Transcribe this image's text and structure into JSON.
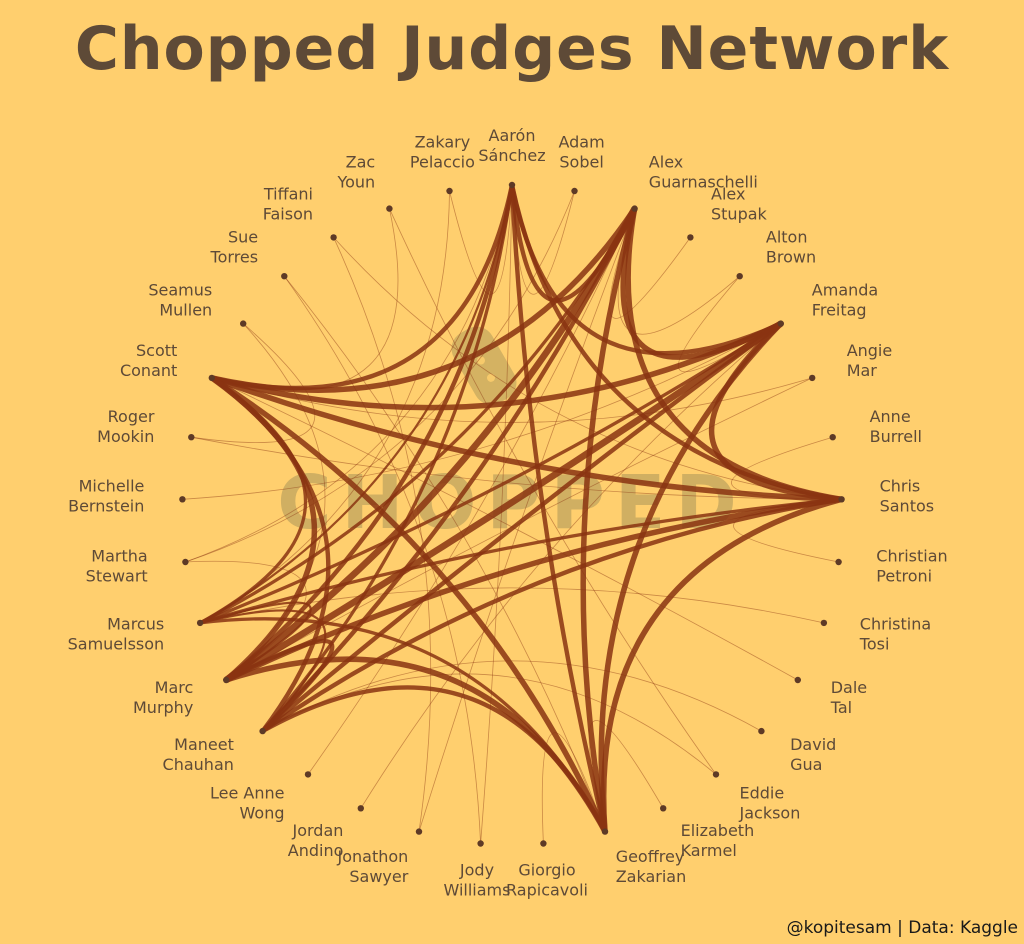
{
  "title": "Chopped Judges Network",
  "credit": "@kopitesam | Data: Kaggle",
  "watermark": "CHOPPED",
  "colors": {
    "background": "#ffcf6e",
    "edge": "#8a3412",
    "text": "#5e4a37",
    "watermark": "#b09a5a"
  },
  "nodes": [
    {
      "id": "aaron",
      "label": [
        "Aarón",
        "Sánchez"
      ]
    },
    {
      "id": "adam",
      "label": [
        "Adam",
        "Sobel"
      ]
    },
    {
      "id": "alexg",
      "label": [
        "Alex",
        "Guarnaschelli"
      ]
    },
    {
      "id": "alexs",
      "label": [
        "Alex",
        "Stupak"
      ]
    },
    {
      "id": "alton",
      "label": [
        "Alton",
        "Brown"
      ]
    },
    {
      "id": "amanda",
      "label": [
        "Amanda",
        "Freitag"
      ]
    },
    {
      "id": "angie",
      "label": [
        "Angie",
        "Mar"
      ]
    },
    {
      "id": "anne",
      "label": [
        "Anne",
        "Burrell"
      ]
    },
    {
      "id": "chris",
      "label": [
        "Chris",
        "Santos"
      ]
    },
    {
      "id": "christian",
      "label": [
        "Christian",
        "Petroni"
      ]
    },
    {
      "id": "christina",
      "label": [
        "Christina",
        "Tosi"
      ]
    },
    {
      "id": "dale",
      "label": [
        "Dale",
        "Tal"
      ]
    },
    {
      "id": "david",
      "label": [
        "David",
        "Gua"
      ]
    },
    {
      "id": "eddie",
      "label": [
        "Eddie",
        "Jackson"
      ]
    },
    {
      "id": "elizabeth",
      "label": [
        "Elizabeth",
        "Karmel"
      ]
    },
    {
      "id": "geoffrey",
      "label": [
        "Geoffrey",
        "Zakarian"
      ]
    },
    {
      "id": "giorgio",
      "label": [
        "Giorgio",
        "Rapicavoli"
      ]
    },
    {
      "id": "jody",
      "label": [
        "Jody",
        "Williams"
      ]
    },
    {
      "id": "jonathon",
      "label": [
        "Jonathon",
        "Sawyer"
      ]
    },
    {
      "id": "jordan",
      "label": [
        "Jordan",
        "Andino"
      ]
    },
    {
      "id": "leeanne",
      "label": [
        "Lee Anne",
        "Wong"
      ]
    },
    {
      "id": "maneet",
      "label": [
        "Maneet",
        "Chauhan"
      ]
    },
    {
      "id": "marc",
      "label": [
        "Marc",
        "Murphy"
      ]
    },
    {
      "id": "marcus",
      "label": [
        "Marcus",
        "Samuelsson"
      ]
    },
    {
      "id": "martha",
      "label": [
        "Martha",
        "Stewart"
      ]
    },
    {
      "id": "michelle",
      "label": [
        "Michelle",
        "Bernstein"
      ]
    },
    {
      "id": "roger",
      "label": [
        "Roger",
        "Mookin"
      ]
    },
    {
      "id": "scott",
      "label": [
        "Scott",
        "Conant"
      ]
    },
    {
      "id": "seamus",
      "label": [
        "Seamus",
        "Mullen"
      ]
    },
    {
      "id": "sue",
      "label": [
        "Sue",
        "Torres"
      ]
    },
    {
      "id": "tiffani",
      "label": [
        "Tiffani",
        "Faison"
      ]
    },
    {
      "id": "zac",
      "label": [
        "Zac",
        "Youn"
      ]
    },
    {
      "id": "zakary",
      "label": [
        "Zakary",
        "Pelaccio"
      ]
    }
  ],
  "edges": [
    [
      "aaron",
      "alexg",
      4
    ],
    [
      "aaron",
      "amanda",
      4
    ],
    [
      "aaron",
      "chris",
      4
    ],
    [
      "aaron",
      "geoffrey",
      4
    ],
    [
      "aaron",
      "marc",
      4
    ],
    [
      "aaron",
      "scott",
      4
    ],
    [
      "aaron",
      "maneet",
      3
    ],
    [
      "aaron",
      "marcus",
      2
    ],
    [
      "aaron",
      "adam",
      1
    ],
    [
      "aaron",
      "zakary",
      1
    ],
    [
      "aaron",
      "jody",
      1
    ],
    [
      "aaron",
      "martha",
      1
    ],
    [
      "alexg",
      "amanda",
      5
    ],
    [
      "alexg",
      "chris",
      5
    ],
    [
      "alexg",
      "geoffrey",
      5
    ],
    [
      "alexg",
      "marc",
      6
    ],
    [
      "alexg",
      "scott",
      5
    ],
    [
      "alexg",
      "maneet",
      4
    ],
    [
      "alexg",
      "marcus",
      3
    ],
    [
      "alexg",
      "alexs",
      1
    ],
    [
      "alexg",
      "alton",
      1
    ],
    [
      "alexg",
      "jonathon",
      1
    ],
    [
      "alexg",
      "leeanne",
      1
    ],
    [
      "amanda",
      "chris",
      5
    ],
    [
      "amanda",
      "geoffrey",
      5
    ],
    [
      "amanda",
      "marc",
      6
    ],
    [
      "amanda",
      "scott",
      5
    ],
    [
      "amanda",
      "maneet",
      4
    ],
    [
      "amanda",
      "marcus",
      3
    ],
    [
      "amanda",
      "alton",
      1
    ],
    [
      "amanda",
      "jordan",
      1
    ],
    [
      "amanda",
      "michelle",
      1
    ],
    [
      "chris",
      "geoffrey",
      5
    ],
    [
      "chris",
      "marc",
      5
    ],
    [
      "chris",
      "scott",
      5
    ],
    [
      "chris",
      "maneet",
      4
    ],
    [
      "chris",
      "marcus",
      3
    ],
    [
      "chris",
      "anne",
      1
    ],
    [
      "chris",
      "christian",
      1
    ],
    [
      "chris",
      "tiffani",
      1
    ],
    [
      "chris",
      "roger",
      1
    ],
    [
      "geoffrey",
      "marc",
      5
    ],
    [
      "geoffrey",
      "scott",
      5
    ],
    [
      "geoffrey",
      "maneet",
      4
    ],
    [
      "geoffrey",
      "marcus",
      3
    ],
    [
      "geoffrey",
      "elizabeth",
      1
    ],
    [
      "geoffrey",
      "giorgio",
      1
    ],
    [
      "geoffrey",
      "sue",
      1
    ],
    [
      "marc",
      "scott",
      5
    ],
    [
      "marc",
      "maneet",
      4
    ],
    [
      "marc",
      "marcus",
      2
    ],
    [
      "marc",
      "martha",
      1
    ],
    [
      "marc",
      "seamus",
      1
    ],
    [
      "scott",
      "maneet",
      4
    ],
    [
      "scott",
      "marcus",
      3
    ],
    [
      "scott",
      "zac",
      1
    ],
    [
      "scott",
      "angie",
      1
    ],
    [
      "scott",
      "dale",
      1
    ],
    [
      "maneet",
      "marcus",
      2
    ],
    [
      "maneet",
      "david",
      1
    ],
    [
      "maneet",
      "eddie",
      1
    ],
    [
      "marcus",
      "christina",
      1
    ],
    [
      "marcus",
      "zakary",
      1
    ],
    [
      "angie",
      "marc",
      1
    ],
    [
      "jody",
      "sue",
      1
    ],
    [
      "zac",
      "eddie",
      1
    ],
    [
      "tiffani",
      "jonathon",
      1
    ],
    [
      "adam",
      "martha",
      1
    ],
    [
      "seamus",
      "roger",
      1
    ]
  ]
}
